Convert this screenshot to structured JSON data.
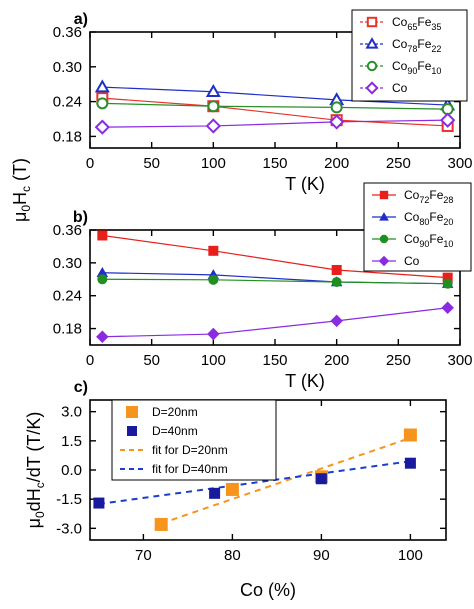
{
  "chart_data": [
    {
      "type": "line",
      "panel_label": "a)",
      "x": [
        10,
        100,
        200,
        290
      ],
      "xlabel": "T (K)",
      "xlim": [
        0,
        300
      ],
      "xticks": [
        0,
        50,
        100,
        150,
        200,
        250,
        300
      ],
      "ylim": [
        0.16,
        0.36
      ],
      "yticks": [
        "0.18",
        "0.24",
        "0.30",
        "0.36"
      ],
      "legend_position": "top-right",
      "series": [
        {
          "name": "Co65Fe35",
          "base": "Co",
          "sub1": "65",
          "mid": "Fe",
          "sub2": "35",
          "color": "#e8322a",
          "marker": "square-open",
          "values": [
            0.246,
            0.232,
            0.208,
            0.198
          ]
        },
        {
          "name": "Co78Fe22",
          "base": "Co",
          "sub1": "78",
          "mid": "Fe",
          "sub2": "22",
          "color": "#1f2fc8",
          "marker": "triangle-open",
          "values": [
            0.265,
            0.257,
            0.243,
            0.234
          ]
        },
        {
          "name": "Co90Fe10",
          "base": "Co",
          "sub1": "90",
          "mid": "Fe",
          "sub2": "10",
          "color": "#2a8f2a",
          "marker": "circle-open",
          "values": [
            0.237,
            0.232,
            0.23,
            0.227
          ]
        },
        {
          "name": "Co",
          "base": "Co",
          "sub1": "",
          "mid": "",
          "sub2": "",
          "color": "#8a2be2",
          "marker": "diamond-open",
          "values": [
            0.196,
            0.198,
            0.205,
            0.208
          ]
        }
      ]
    },
    {
      "type": "line",
      "panel_label": "b)",
      "x": [
        10,
        100,
        200,
        290
      ],
      "xlabel": "T (K)",
      "xlim": [
        0,
        300
      ],
      "xticks": [
        0,
        50,
        100,
        150,
        200,
        250,
        300
      ],
      "ylim": [
        0.15,
        0.36
      ],
      "yticks": [
        "0.18",
        "0.24",
        "0.30",
        "0.36"
      ],
      "legend_position": "top-right",
      "series": [
        {
          "name": "Co72Fe28",
          "base": "Co",
          "sub1": "72",
          "mid": "Fe",
          "sub2": "28",
          "color": "#e8201c",
          "marker": "square-filled",
          "values": [
            0.35,
            0.322,
            0.287,
            0.273
          ]
        },
        {
          "name": "Co80Fe20",
          "base": "Co",
          "sub1": "80",
          "mid": "Fe",
          "sub2": "20",
          "color": "#1f2fc8",
          "marker": "triangle-filled",
          "values": [
            0.282,
            0.278,
            0.265,
            0.262
          ]
        },
        {
          "name": "Co90Fe10",
          "base": "Co",
          "sub1": "90",
          "mid": "Fe",
          "sub2": "10",
          "color": "#1f8f1f",
          "marker": "circle-filled",
          "values": [
            0.27,
            0.269,
            0.265,
            0.262
          ]
        },
        {
          "name": "Co",
          "base": "Co",
          "sub1": "",
          "mid": "",
          "sub2": "",
          "color": "#8a2be2",
          "marker": "diamond-filled",
          "values": [
            0.165,
            0.17,
            0.194,
            0.218
          ]
        }
      ]
    },
    {
      "type": "scatter",
      "panel_label": "c)",
      "xlabel": "Co (%)",
      "xlim": [
        64,
        104
      ],
      "xticks": [
        70,
        80,
        90,
        100
      ],
      "ylim": [
        -3.6,
        3.6
      ],
      "yticks": [
        "-3.0",
        "-1.5",
        "0.0",
        "1.5",
        "3.0"
      ],
      "legend_position": "top-left",
      "series": [
        {
          "name": "D=20nm",
          "color": "#f7941d",
          "marker": "square-filled-large",
          "x": [
            72,
            80,
            90,
            100
          ],
          "values": [
            -2.8,
            -1.0,
            -0.35,
            1.8
          ]
        },
        {
          "name": "D=40nm",
          "color": "#1a1a9e",
          "marker": "square-filled",
          "x": [
            65,
            78,
            90,
            100
          ],
          "values": [
            -1.7,
            -1.2,
            -0.45,
            0.35
          ]
        }
      ],
      "fits": [
        {
          "name": "fit for D=20nm",
          "color": "#f7941d",
          "x": [
            72,
            100
          ],
          "values": [
            -2.75,
            1.65
          ]
        },
        {
          "name": "fit for D=40nm",
          "color": "#1a3fd0",
          "x": [
            65,
            100
          ],
          "values": [
            -1.75,
            0.45
          ]
        }
      ]
    }
  ],
  "shared_ylabel_top": {
    "base": "μ",
    "sub": "0",
    "mid": "H",
    "sub2": "c",
    "tail": " (T)"
  },
  "ylabel_bottom": {
    "base": "μ",
    "sub": "0",
    "mid": "dH",
    "sub2": "c",
    "tail": "/dT (T/K)"
  }
}
